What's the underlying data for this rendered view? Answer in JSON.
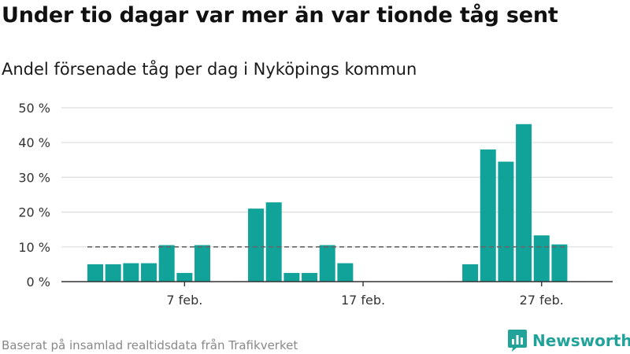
{
  "title": "Under tio dagar var mer än var tionde tåg sent",
  "subtitle": "Andel försenade tåg per dag i Nyköpings kommun",
  "source": "Baserat på insamlad realtidsdata från Trafikverket",
  "brand": "Newsworthy",
  "colors": {
    "bar": "#11a39a",
    "reference": "#666666",
    "grid": "#dddddd",
    "axis": "#333333",
    "brand": "#22a39a"
  },
  "chart_data": {
    "type": "bar",
    "x": [
      "2 feb.",
      "3 feb.",
      "4 feb.",
      "5 feb.",
      "6 feb.",
      "7 feb.",
      "8 feb.",
      "9 feb.",
      "10 feb.",
      "11 feb.",
      "12 feb.",
      "13 feb.",
      "14 feb.",
      "15 feb.",
      "16 feb.",
      "17 feb.",
      "18 feb.",
      "19 feb.",
      "20 feb.",
      "21 feb.",
      "22 feb.",
      "23 feb.",
      "24 feb.",
      "25 feb.",
      "26 feb.",
      "27 feb.",
      "28 feb."
    ],
    "values": [
      5,
      5,
      5.3,
      5.3,
      10.5,
      2.5,
      10.5,
      0,
      0,
      21,
      22.8,
      2.5,
      2.5,
      10.5,
      5.3,
      0,
      0,
      0,
      0,
      0,
      0,
      5,
      38,
      34.5,
      45.3,
      13.3,
      10.7
    ],
    "y_ticks": [
      0,
      10,
      20,
      30,
      40,
      50
    ],
    "y_tick_labels": [
      "0 %",
      "10 %",
      "20 %",
      "30 %",
      "40 %",
      "50 %"
    ],
    "x_tick_labels": [
      "7 feb.",
      "17 feb.",
      "27 feb."
    ],
    "x_tick_positions": [
      "7 feb.",
      "17 feb.",
      "27 feb."
    ],
    "reference_line": 10,
    "ylim": [
      0,
      50
    ],
    "grid": true
  }
}
